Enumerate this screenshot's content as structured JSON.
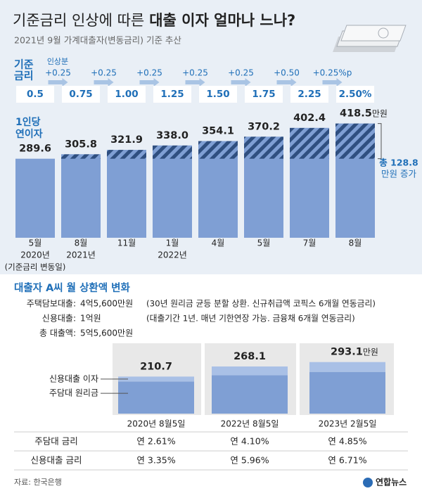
{
  "title": "기준금리 인상에 따른",
  "title_bold": "대출 이자 얼마나 느나?",
  "subtitle": "2021년 9월 가계대출자(변동금리) 기준 추산",
  "rates": {
    "label": [
      "기준",
      "금리"
    ],
    "increase_label": "인상분",
    "increases": [
      "+0.25",
      "+0.25",
      "+0.25",
      "+0.25",
      "+0.25",
      "+0.50",
      "+0.25%p"
    ],
    "values": [
      "0.5",
      "0.75",
      "1.00",
      "1.25",
      "1.50",
      "1.75",
      "2.25",
      "2.50%"
    ]
  },
  "chart_data": [
    {
      "type": "bar",
      "y_label": [
        "1인당",
        "연이자"
      ],
      "categories": [
        "5월",
        "8월",
        "11월",
        "1월",
        "4월",
        "5월",
        "7월",
        "8월"
      ],
      "years": [
        "2020년",
        "2021년",
        null,
        "2022년",
        null,
        null,
        null,
        null
      ],
      "note": "(기준금리 변동일)",
      "values": [
        289.6,
        305.8,
        321.9,
        338.0,
        354.1,
        370.2,
        402.4,
        418.5
      ],
      "value_labels": [
        "289.6",
        "305.8",
        "321.9",
        "338.0",
        "354.1",
        "370.2",
        "402.4",
        "418.5"
      ],
      "value_unit": "만원",
      "annotation": [
        "총 128.8",
        "만원 증가"
      ],
      "color": "#7f9fd4",
      "hatch_color": "#2f4f80",
      "ylim": [
        0,
        450
      ]
    },
    {
      "type": "stacked_bar",
      "categories": [
        "2020년 8월5일",
        "2022년 8월5일",
        "2023년 2월5일"
      ],
      "series": [
        {
          "name": "주담대 원리금",
          "color": "#7f9fd4",
          "values": [
            182.8,
            218.4,
            237.2
          ]
        },
        {
          "name": "신용대출 이자",
          "color": "#a9c0e6",
          "values": [
            27.9,
            49.7,
            55.9
          ]
        }
      ],
      "totals": [
        210.7,
        268.1,
        293.1
      ],
      "value_unit": "만원",
      "ylim": [
        0,
        400
      ]
    }
  ],
  "section_title": "대출자 A씨 월 상환액 변화",
  "loan_info": [
    [
      "주택담보대출:",
      "4억5,600만원",
      "(30년 원리금 균등 분할 상환. 신규취급액 코픽스 6개월 연동금리)"
    ],
    [
      "신용대출:",
      "1억원",
      "(대출기간 1년. 매년 기한연장 가능. 금융채 6개월 연동금리)"
    ],
    [
      "총 대출액:",
      "5억5,600만원"
    ]
  ],
  "rate_table": [
    [
      "주담대 금리",
      "연 2.61%",
      "연 4.10%",
      "연 4.85%"
    ],
    [
      "신용대출 금리",
      "연 3.35%",
      "연 5.96%",
      "연 6.71%"
    ]
  ],
  "source": "자료: 한국은행",
  "logo": "연합뉴스"
}
